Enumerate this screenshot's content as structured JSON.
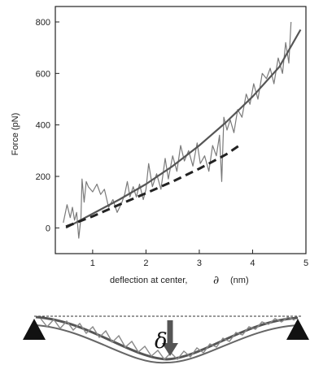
{
  "chart_data": {
    "type": "line",
    "xlabel": "deflection at center,",
    "xsymbol": "∂",
    "xunit": "(nm)",
    "ylabel": "Force  (pN)",
    "xlim": [
      0.3,
      5.0
    ],
    "ylim": [
      -100,
      860
    ],
    "xticks": [
      1,
      2,
      3,
      4,
      5
    ],
    "yticks": [
      0,
      200,
      400,
      600,
      800
    ],
    "grid": false,
    "series": [
      {
        "style": "noisy-trace",
        "x": [
          0.45,
          0.52,
          0.58,
          0.62,
          0.66,
          0.7,
          0.74,
          0.78,
          0.8,
          0.84,
          0.88,
          0.92,
          1.0,
          1.08,
          1.15,
          1.22,
          1.3,
          1.38,
          1.46,
          1.54,
          1.6,
          1.65,
          1.7,
          1.76,
          1.82,
          1.88,
          1.95,
          2.0,
          2.05,
          2.12,
          2.2,
          2.28,
          2.36,
          2.42,
          2.5,
          2.58,
          2.65,
          2.72,
          2.8,
          2.88,
          2.96,
          3.02,
          3.1,
          3.18,
          3.25,
          3.32,
          3.38,
          3.42,
          3.46,
          3.52,
          3.58,
          3.65,
          3.72,
          3.8,
          3.88,
          3.95,
          4.02,
          4.1,
          4.18,
          4.26,
          4.33,
          4.4,
          4.48,
          4.56,
          4.62,
          4.68,
          4.72
        ],
        "y": [
          20,
          90,
          40,
          80,
          30,
          60,
          -40,
          40,
          190,
          100,
          180,
          160,
          140,
          170,
          130,
          150,
          80,
          110,
          60,
          95,
          130,
          180,
          120,
          160,
          120,
          170,
          110,
          150,
          250,
          160,
          210,
          150,
          270,
          190,
          280,
          220,
          320,
          260,
          300,
          240,
          330,
          250,
          280,
          220,
          320,
          280,
          360,
          180,
          430,
          380,
          420,
          370,
          460,
          430,
          520,
          480,
          560,
          500,
          600,
          580,
          620,
          560,
          660,
          600,
          720,
          640,
          800
        ]
      },
      {
        "style": "solid-fit",
        "x": [
          0.5,
          1.0,
          1.5,
          2.0,
          2.5,
          3.0,
          3.5,
          4.0,
          4.5,
          4.9
        ],
        "y": [
          0,
          55,
          110,
          170,
          240,
          320,
          410,
          510,
          625,
          770
        ]
      },
      {
        "style": "dashed-fit",
        "x": [
          0.5,
          1.0,
          1.5,
          2.0,
          2.5,
          3.0,
          3.5,
          3.75
        ],
        "y": [
          5,
          45,
          90,
          135,
          180,
          230,
          285,
          320
        ]
      }
    ]
  },
  "schematic": {
    "delta_label": "δ"
  }
}
